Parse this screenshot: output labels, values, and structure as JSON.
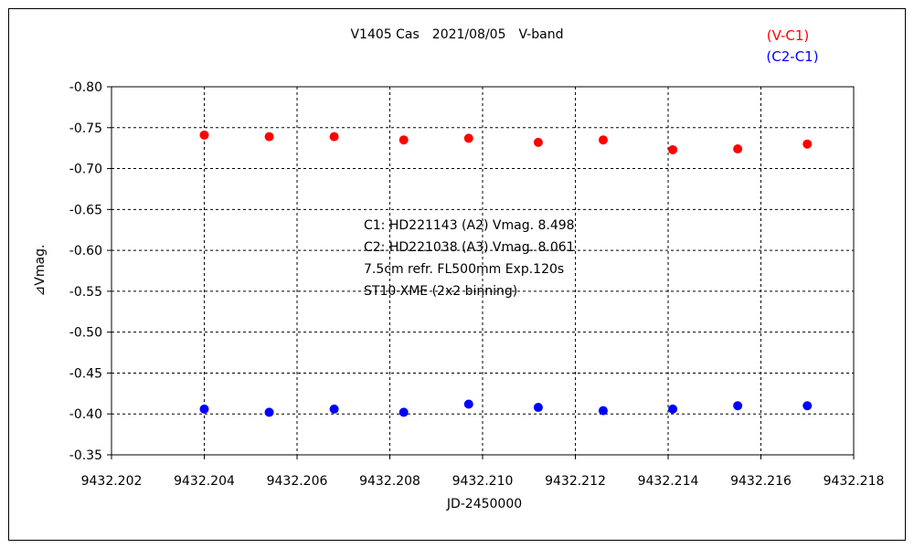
{
  "chart_data": {
    "type": "scatter",
    "title": "V1405 Cas　2021/08/05　V-band",
    "xlabel": "JD-2450000",
    "ylabel": "⊿Vmag.",
    "xlim": [
      9432.202,
      9432.218
    ],
    "ylim": [
      -0.35,
      -0.8
    ],
    "y_inverted": true,
    "grid": "horizontal dashed",
    "legend_position": "top-right",
    "x_tick_labels": [
      "9432.202",
      "9432.204",
      "9432.206",
      "9432.208",
      "9432.210",
      "9432.212",
      "9432.214",
      "9432.216",
      "9432.218"
    ],
    "y_tick_labels": [
      "-0.80",
      "-0.75",
      "-0.70",
      "-0.65",
      "-0.60",
      "-0.55",
      "-0.50",
      "-0.45",
      "-0.40",
      "-0.35"
    ],
    "x_ticks": [
      9432.202,
      9432.204,
      9432.206,
      9432.208,
      9432.21,
      9432.212,
      9432.214,
      9432.216,
      9432.218
    ],
    "y_ticks": [
      -0.8,
      -0.75,
      -0.7,
      -0.65,
      -0.6,
      -0.55,
      -0.5,
      -0.45,
      -0.4,
      -0.35
    ],
    "series": [
      {
        "name": "(V-C1)",
        "color": "#ff0000",
        "x": [
          9432.204,
          9432.2054,
          9432.2068,
          9432.2083,
          9432.2097,
          9432.2112,
          9432.2126,
          9432.2141,
          9432.2155,
          9432.217
        ],
        "y": [
          -0.741,
          -0.739,
          -0.739,
          -0.735,
          -0.737,
          -0.732,
          -0.735,
          -0.723,
          -0.724,
          -0.73
        ]
      },
      {
        "name": "(C2-C1)",
        "color": "#0000ff",
        "x": [
          9432.204,
          9432.2054,
          9432.2068,
          9432.2083,
          9432.2097,
          9432.2112,
          9432.2126,
          9432.2141,
          9432.2155,
          9432.217
        ],
        "y": [
          -0.406,
          -0.402,
          -0.406,
          -0.402,
          -0.412,
          -0.408,
          -0.404,
          -0.406,
          -0.41,
          -0.41
        ]
      }
    ],
    "annotations": [
      "C1: HD221143 (A2) Vmag. 8.498",
      "C2: HD221038 (A3) Vmag. 8.061",
      "7.5cm refr. FL500mm Exp.120s",
      "ST10-XME (2x2 binning)"
    ]
  }
}
